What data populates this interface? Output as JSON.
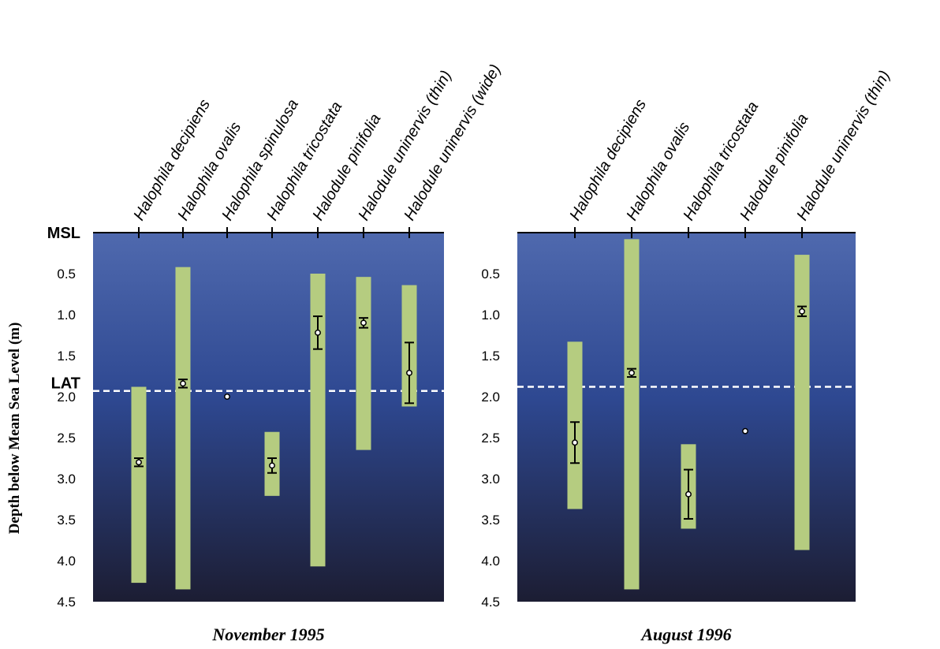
{
  "chart_data": [
    {
      "type": "range-errorbar",
      "title": "November 1995",
      "ylabel": "Depth below Mean Sea Level (m)",
      "ylim": [
        0,
        4.5
      ],
      "y_inverted": true,
      "y_ticks": [
        "0.5",
        "1.0",
        "1.5",
        "2.0",
        "2.5",
        "3.0",
        "3.5",
        "4.0",
        "4.5"
      ],
      "reference_lines": [
        {
          "label": "MSL",
          "y": 0
        },
        {
          "label": "LAT",
          "y": 1.93,
          "style": "dashed"
        }
      ],
      "categories": [
        "Halophila decipiens",
        "Halophila ovalis",
        "Halophila spinulosa",
        "Halophila tricostata",
        "Halodule pinifolia",
        "Halodule uninervis (thin)",
        "Halodule uninervis (wide)"
      ],
      "range": [
        [
          1.88,
          4.27
        ],
        [
          0.42,
          4.35
        ],
        null,
        [
          2.43,
          3.21
        ],
        [
          0.5,
          4.07
        ],
        [
          0.54,
          2.65
        ],
        [
          0.64,
          2.12
        ]
      ],
      "mean": [
        2.8,
        1.84,
        2.0,
        2.84,
        1.22,
        1.1,
        1.71
      ],
      "error": [
        0.05,
        0.05,
        0,
        0.09,
        0.2,
        0.06,
        0.37
      ]
    },
    {
      "type": "range-errorbar",
      "title": "August 1996",
      "ylim": [
        0,
        4.5
      ],
      "y_inverted": true,
      "y_ticks": [
        "0.5",
        "1.0",
        "1.5",
        "2.0",
        "2.5",
        "3.0",
        "3.5",
        "4.0",
        "4.5"
      ],
      "reference_lines": [
        {
          "label": "",
          "y": 1.88,
          "style": "dashed"
        }
      ],
      "categories": [
        "Halophila decipiens",
        "Halophila ovalis",
        "Halophila tricostata",
        "Halodule pinifolia",
        "Halodule uninervis (thin)"
      ],
      "range": [
        [
          1.33,
          3.37
        ],
        [
          0.08,
          4.35
        ],
        [
          2.58,
          3.61
        ],
        null,
        [
          0.27,
          3.87
        ]
      ],
      "mean": [
        2.56,
        1.71,
        3.19,
        2.42,
        0.96
      ],
      "error": [
        0.25,
        0.05,
        0.3,
        0,
        0.06
      ]
    }
  ]
}
